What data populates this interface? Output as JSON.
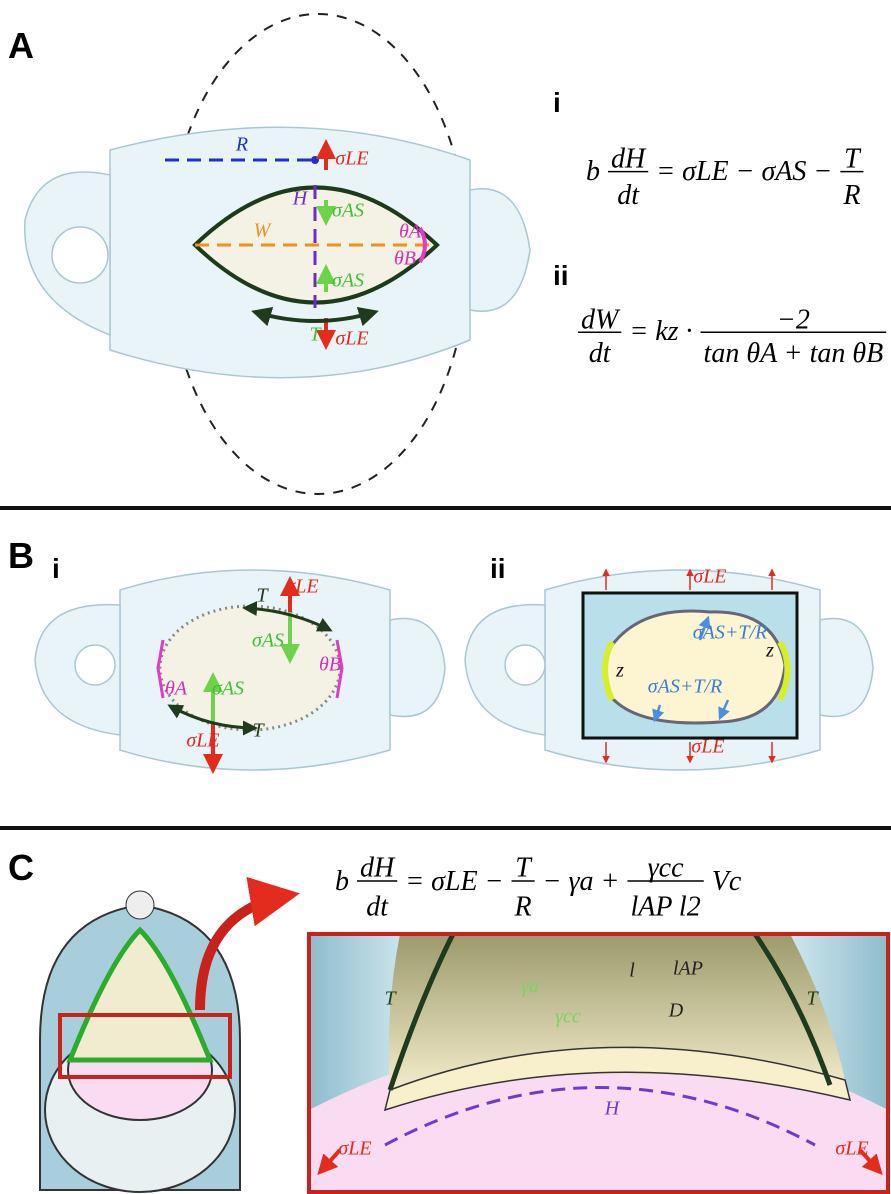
{
  "panel_a": {
    "label": "A",
    "labels": [
      "R",
      "H",
      "W",
      "T",
      "σLE",
      "σLE",
      "σAS",
      "σAS",
      "θA",
      "θB"
    ],
    "equations": [
      {
        "label": "i",
        "tokens": [
          {
            "text": "b"
          },
          {
            "num": "dH",
            "den": "dt"
          },
          {
            "text": "= σLE − σAS −"
          },
          {
            "num": "T",
            "den": "R"
          }
        ]
      },
      {
        "label": "ii",
        "tokens": [
          {
            "num": "dW",
            "den": "dt"
          },
          {
            "text": "= kz ·"
          },
          {
            "num": "−2",
            "den": "tan θA + tan θB"
          }
        ]
      }
    ]
  },
  "panel_b": {
    "label": "B",
    "sub_i": {
      "label": "i",
      "labels": [
        "T",
        "T",
        "σLE",
        "σLE",
        "σAS",
        "σAS",
        "θA",
        "θB"
      ]
    },
    "sub_ii": {
      "label": "ii",
      "labels": [
        "σLE",
        "σLE",
        "σAS+T/R",
        "σAS+T/R",
        "z",
        "z"
      ]
    }
  },
  "panel_c": {
    "label": "C",
    "equation": {
      "tokens": [
        {
          "text": "b"
        },
        {
          "num": "dH",
          "den": "dt"
        },
        {
          "text": "= σLE −"
        },
        {
          "num": "T",
          "den": "R"
        },
        {
          "text": "− γa +"
        },
        {
          "num": "γcc",
          "den": "lAP l2"
        },
        {
          "text": "Vc"
        }
      ]
    },
    "labels": [
      "T",
      "T",
      "γa",
      "γcc",
      "l",
      "lAP",
      "D",
      "H",
      "σLE",
      "σLE"
    ]
  }
}
